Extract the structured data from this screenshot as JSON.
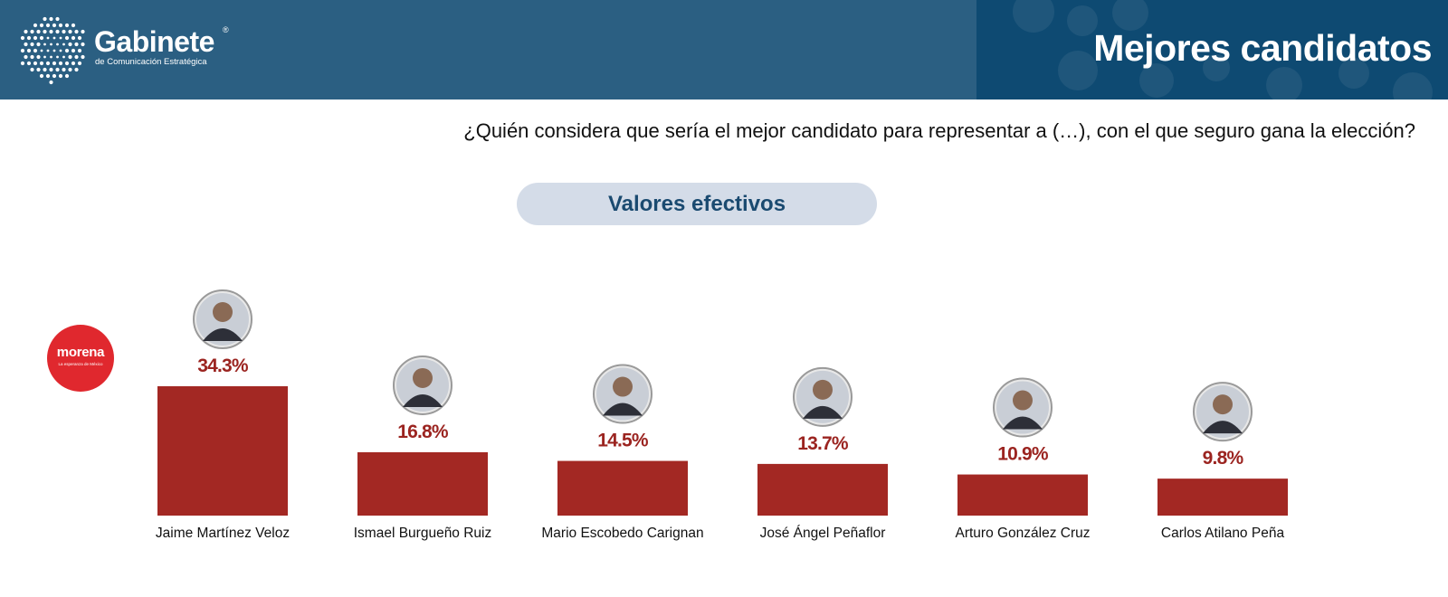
{
  "brand": {
    "name": "Gabinete",
    "registered": "®",
    "subtitle": "de Comunicación Estratégica"
  },
  "header": {
    "title": "Mejores candidatos"
  },
  "question": "¿Quién considera que sería el mejor candidato para representar a (…), con el que seguro gana la elección?",
  "pill_label": "Valores efectivos",
  "party": {
    "name": "morena",
    "tagline": "La esperanza de México"
  },
  "colors": {
    "header": "#2b5f82",
    "header_dark": "#0e4a72",
    "bar": "#a32823",
    "value_text": "#9b2420",
    "pill": "#d4dce8"
  },
  "chart_data": {
    "type": "bar",
    "title": "Valores efectivos",
    "categories": [
      "Jaime Martínez Veloz",
      "Ismael Burgueño Ruiz",
      "Mario Escobedo Carignan",
      "José Ángel Peñaflor",
      "Arturo González Cruz",
      "Carlos Atilano Peña"
    ],
    "values": [
      34.3,
      16.8,
      14.5,
      13.7,
      10.9,
      9.8
    ],
    "labels": [
      "34.3%",
      "16.8%",
      "14.5%",
      "13.7%",
      "10.9%",
      "9.8%"
    ],
    "unit": "%",
    "xlabel": "",
    "ylabel": "",
    "ylim": [
      0,
      34.3
    ],
    "grid": false,
    "legend": "none"
  }
}
